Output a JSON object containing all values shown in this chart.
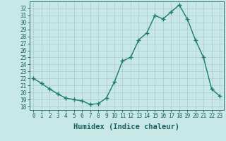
{
  "x": [
    0,
    1,
    2,
    3,
    4,
    5,
    6,
    7,
    8,
    9,
    10,
    11,
    12,
    13,
    14,
    15,
    16,
    17,
    18,
    19,
    20,
    21,
    22,
    23
  ],
  "y": [
    22.0,
    21.3,
    20.5,
    19.8,
    19.2,
    19.0,
    18.8,
    18.3,
    18.4,
    19.2,
    21.5,
    24.5,
    25.0,
    27.5,
    28.5,
    31.0,
    30.5,
    31.5,
    32.5,
    30.5,
    27.5,
    25.0,
    20.5,
    19.5
  ],
  "line_color": "#1a7a6e",
  "marker": "+",
  "marker_size": 4,
  "bg_color": "#c8e8e8",
  "grid_color": "#b0d0d0",
  "xlabel": "Humidex (Indice chaleur)",
  "xlim": [
    -0.5,
    23.5
  ],
  "ylim": [
    17.5,
    33.0
  ],
  "yticks": [
    18,
    19,
    20,
    21,
    22,
    23,
    24,
    25,
    26,
    27,
    28,
    29,
    30,
    31,
    32
  ],
  "xticks": [
    0,
    1,
    2,
    3,
    4,
    5,
    6,
    7,
    8,
    9,
    10,
    11,
    12,
    13,
    14,
    15,
    16,
    17,
    18,
    19,
    20,
    21,
    22,
    23
  ],
  "font_color": "#1a5f5f",
  "tick_fontsize": 5.5,
  "label_fontsize": 7.5
}
